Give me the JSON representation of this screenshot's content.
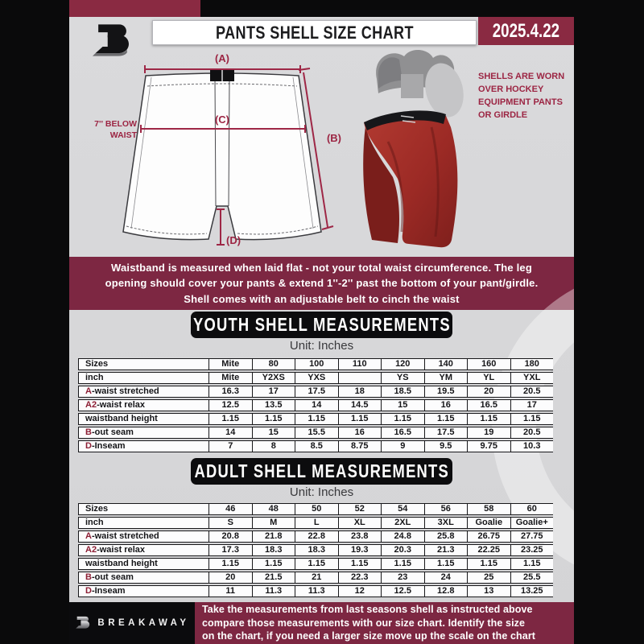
{
  "header": {
    "title": "PANTS SHELL SIZE CHART",
    "date": "2025.4.22"
  },
  "colors": {
    "maroon_banner": "#7d2742",
    "maroon_accent": "#8a2a42",
    "diagram_line": "#9e2746",
    "table_accent_letter": "#8d1f35",
    "shell_red": "#9c2a25"
  },
  "diagram": {
    "label_a": "(A)",
    "label_b": "(B)",
    "label_c": "(C)",
    "label_d": "(D)",
    "waist_note": "7'' BELOW\nWAIST",
    "photo_note": "SHELLS ARE WORN\nOVER HOCKEY\nEQUIPMENT PANTS\nOR GIRDLE"
  },
  "notice": {
    "text": "Waistband is measured when laid flat - not your total waist circumference. The leg\nopening should cover your pants & extend 1''-2'' past the bottom of your pant/girdle.\nShell comes with an adjustable belt to cinch the waist"
  },
  "youth": {
    "title": "YOUTH SHELL MEASUREMENTS",
    "unit": "Unit: Inches",
    "rows": [
      {
        "label": "Sizes",
        "values": [
          "Mite",
          "80",
          "100",
          "110",
          "120",
          "140",
          "160",
          "180"
        ]
      },
      {
        "label": "inch",
        "values": [
          "Mite",
          "Y2XS",
          "YXS",
          "",
          "YS",
          "YM",
          "YL",
          "YXL"
        ]
      },
      {
        "accent": "A",
        "label": "-waist stretched",
        "values": [
          "16.3",
          "17",
          "17.5",
          "18",
          "18.5",
          "19.5",
          "20",
          "20.5"
        ]
      },
      {
        "accent": "A2",
        "label": "-waist relax",
        "values": [
          "12.5",
          "13.5",
          "14",
          "14.5",
          "15",
          "16",
          "16.5",
          "17"
        ]
      },
      {
        "label": "waistband height",
        "values": [
          "1.15",
          "1.15",
          "1.15",
          "1.15",
          "1.15",
          "1.15",
          "1.15",
          "1.15"
        ]
      },
      {
        "accent": "B",
        "label": "-out seam",
        "values": [
          "14",
          "15",
          "15.5",
          "16",
          "16.5",
          "17.5",
          "19",
          "20.5"
        ]
      },
      {
        "accent": "D",
        "label": "-Inseam",
        "values": [
          "7",
          "8",
          "8.5",
          "8.75",
          "9",
          "9.5",
          "9.75",
          "10.3"
        ]
      }
    ]
  },
  "adult": {
    "title": "ADULT SHELL MEASUREMENTS",
    "unit": "Unit: Inches",
    "rows": [
      {
        "label": "Sizes",
        "values": [
          "46",
          "48",
          "50",
          "52",
          "54",
          "56",
          "58",
          "60"
        ]
      },
      {
        "label": "inch",
        "values": [
          "S",
          "M",
          "L",
          "XL",
          "2XL",
          "3XL",
          "Goalie",
          "Goalie+"
        ]
      },
      {
        "accent": "A",
        "label": "-waist stretched",
        "values": [
          "20.8",
          "21.8",
          "22.8",
          "23.8",
          "24.8",
          "25.8",
          "26.75",
          "27.75"
        ]
      },
      {
        "accent": "A2",
        "label": "-waist relax",
        "values": [
          "17.3",
          "18.3",
          "18.3",
          "19.3",
          "20.3",
          "21.3",
          "22.25",
          "23.25"
        ]
      },
      {
        "label": "waistband height",
        "values": [
          "1.15",
          "1.15",
          "1.15",
          "1.15",
          "1.15",
          "1.15",
          "1.15",
          "1.15"
        ]
      },
      {
        "accent": "B",
        "label": "-out seam",
        "values": [
          "20",
          "21.5",
          "21",
          "22.3",
          "23",
          "24",
          "25",
          "25.5"
        ]
      },
      {
        "accent": "D",
        "label": "-Inseam",
        "values": [
          "11",
          "11.3",
          "11.3",
          "12",
          "12.5",
          "12.8",
          "13",
          "13.25"
        ]
      }
    ]
  },
  "footer": {
    "brand": "BREAKAWAY",
    "text": "Take the measurements from last seasons shell as instructed above\ncompare those measurements  with our size chart. Identify the size\non the chart, if you need a larger size move up the scale on the chart"
  }
}
